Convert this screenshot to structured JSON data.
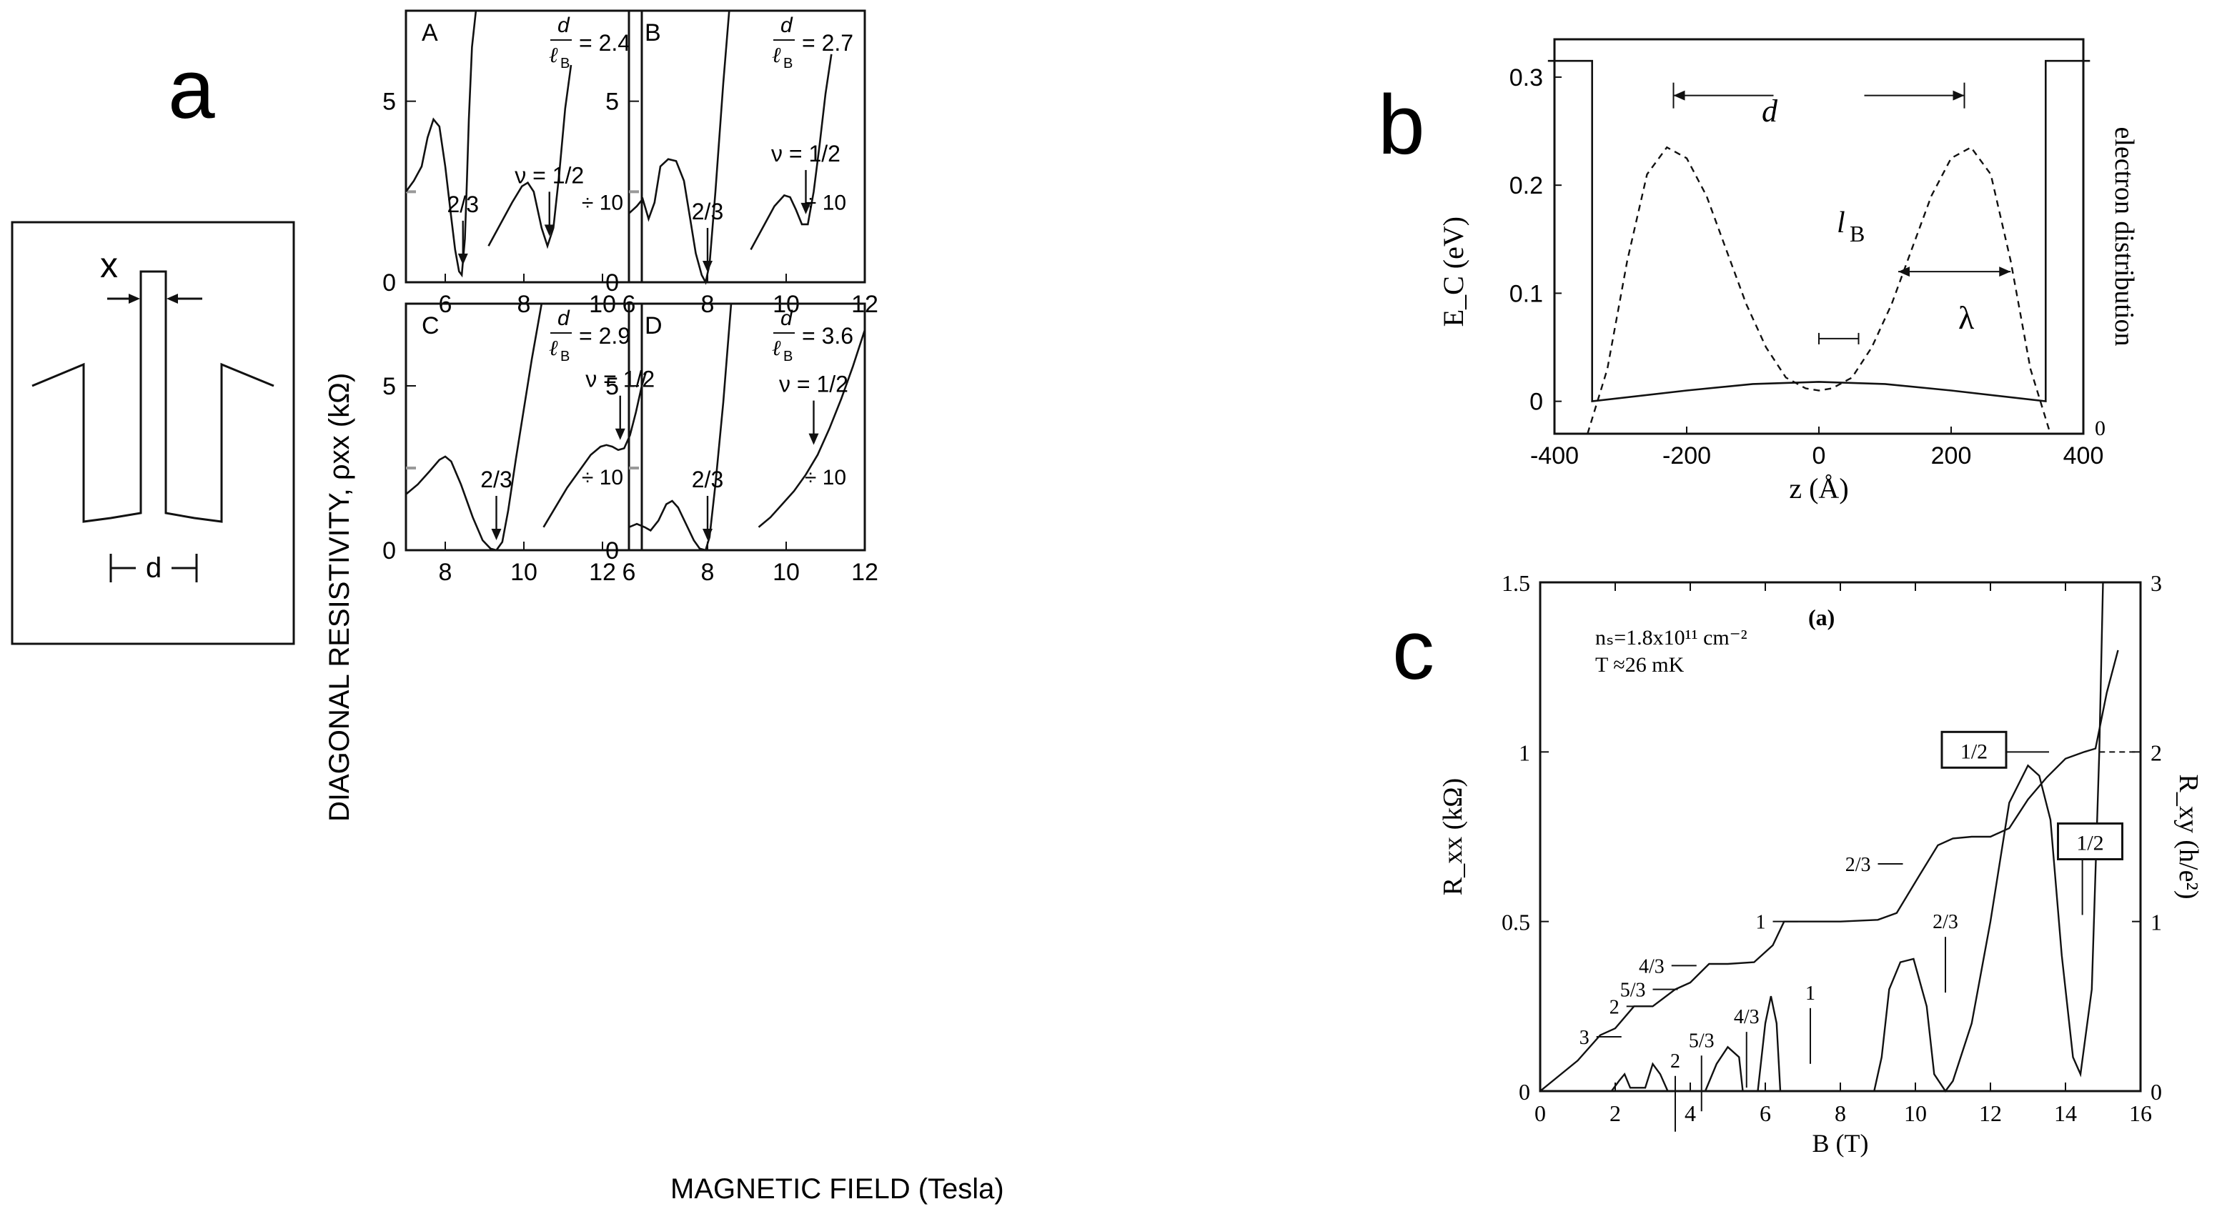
{
  "panel_a": {
    "letter": "a",
    "schematic": {
      "x_label": "x",
      "d_label": "d"
    },
    "ylabel": "DIAGONAL RESISTIVITY, ρxx (kΩ)",
    "xlabel": "MAGNETIC FIELD (Tesla)",
    "divide_label": "÷ 10"
  },
  "panel_b": {
    "letter": "b",
    "d_label": "d",
    "lb_label": "l_B",
    "lambda_label": "λ"
  },
  "panel_c": {
    "letter": "c",
    "sub_label": "(a)",
    "ns_text": "nₛ=1.8x10¹¹ cm⁻²",
    "t_text": "T ≈26 mK",
    "box1": "1/2",
    "box2": "1/2"
  },
  "chart_data": [
    {
      "type": "line",
      "id": "A",
      "label": "A",
      "ratio_text": "= 2.4",
      "xlim": [
        5,
        11
      ],
      "ylim": [
        0,
        7.5
      ],
      "xticks": [
        6,
        8,
        10
      ],
      "yticks": [
        0,
        5
      ],
      "arrows": [
        {
          "x": 6.45,
          "label": "2/3"
        },
        {
          "x": 8.65,
          "label": "ν = 1/2"
        }
      ],
      "divide_label": "÷ 10",
      "series": [
        {
          "name": "rho_xx",
          "x": [
            5,
            5.2,
            5.4,
            5.55,
            5.7,
            5.85,
            6.0,
            6.15,
            6.25,
            6.35,
            6.42,
            6.5,
            6.55,
            6.6,
            6.68,
            6.78
          ],
          "values": [
            2.5,
            2.8,
            3.2,
            4.0,
            4.5,
            4.3,
            3.2,
            1.8,
            0.9,
            0.3,
            0.2,
            1.2,
            2.8,
            4.5,
            6.5,
            7.5
          ]
        },
        {
          "name": "rho_xx_div10",
          "x": [
            7.1,
            7.4,
            7.7,
            7.95,
            8.1,
            8.25,
            8.45,
            8.6,
            8.75,
            8.9,
            9.05,
            9.2
          ],
          "values": [
            1.0,
            1.6,
            2.2,
            2.65,
            2.75,
            2.5,
            1.5,
            1.0,
            1.5,
            3.0,
            4.8,
            6.0
          ]
        }
      ]
    },
    {
      "type": "line",
      "id": "B",
      "label": "B",
      "ratio_text": "= 2.7",
      "xlim": [
        6,
        12
      ],
      "ylim": [
        0,
        7.5
      ],
      "xticks": [
        6,
        8,
        10,
        12
      ],
      "yticks": [
        0,
        5
      ],
      "arrows": [
        {
          "x": 8.0,
          "label": "2/3"
        },
        {
          "x": 10.5,
          "label": "ν = 1/2"
        }
      ],
      "divide_label": "÷ 10",
      "series": [
        {
          "name": "rho_xx",
          "x": [
            6,
            6.2,
            6.35,
            6.5,
            6.65,
            6.8,
            7.0,
            7.2,
            7.4,
            7.55,
            7.7,
            7.85,
            7.95,
            8.05,
            8.2,
            8.4,
            8.55
          ],
          "values": [
            1.9,
            2.1,
            2.3,
            1.75,
            2.2,
            3.2,
            3.4,
            3.35,
            2.8,
            1.8,
            0.8,
            0.2,
            0.0,
            0.5,
            2.5,
            5.5,
            7.5
          ]
        },
        {
          "name": "rho_xx_div10",
          "x": [
            9.1,
            9.4,
            9.7,
            9.95,
            10.1,
            10.25,
            10.4,
            10.55,
            10.7,
            10.85,
            11.0,
            11.15
          ],
          "values": [
            0.9,
            1.5,
            2.1,
            2.4,
            2.35,
            2.0,
            1.6,
            1.6,
            2.5,
            3.8,
            5.2,
            6.3
          ]
        }
      ]
    },
    {
      "type": "line",
      "id": "C",
      "label": "C",
      "ratio_text": "= 2.9",
      "xlim": [
        7,
        13
      ],
      "ylim": [
        0,
        7.5
      ],
      "xticks": [
        8,
        10,
        12
      ],
      "yticks": [
        0,
        5
      ],
      "arrows": [
        {
          "x": 9.3,
          "label": "2/3"
        },
        {
          "x": 12.45,
          "label": "ν = 1/2"
        }
      ],
      "divide_label": "÷ 10",
      "series": [
        {
          "name": "rho_xx",
          "x": [
            7,
            7.3,
            7.6,
            7.85,
            8.0,
            8.15,
            8.4,
            8.7,
            8.95,
            9.15,
            9.3,
            9.45,
            9.6,
            9.8,
            10.0,
            10.2,
            10.45
          ],
          "values": [
            1.7,
            2.0,
            2.4,
            2.75,
            2.85,
            2.7,
            2.0,
            1.0,
            0.3,
            0.05,
            0.0,
            0.25,
            1.2,
            2.8,
            4.3,
            5.8,
            7.5
          ]
        },
        {
          "name": "rho_xx_div10",
          "x": [
            10.5,
            10.8,
            11.1,
            11.4,
            11.7,
            11.95,
            12.1,
            12.25,
            12.4,
            12.55,
            12.7,
            12.85,
            13.0,
            13.1
          ],
          "values": [
            0.7,
            1.3,
            1.9,
            2.4,
            2.9,
            3.15,
            3.2,
            3.15,
            3.05,
            3.1,
            3.5,
            4.2,
            5.0,
            5.4
          ]
        }
      ]
    },
    {
      "type": "line",
      "id": "D",
      "label": "D",
      "ratio_text": "= 3.6",
      "xlim": [
        6,
        12
      ],
      "ylim": [
        0,
        7.5
      ],
      "xticks": [
        6,
        8,
        10,
        12
      ],
      "yticks": [
        0,
        5
      ],
      "arrows": [
        {
          "x": 8.0,
          "label": "2/3"
        },
        {
          "x": 10.7,
          "label": "ν = 1/2"
        }
      ],
      "divide_label": "÷ 10",
      "series": [
        {
          "name": "rho_xx",
          "x": [
            6,
            6.2,
            6.4,
            6.55,
            6.75,
            6.95,
            7.1,
            7.25,
            7.45,
            7.65,
            7.8,
            7.95,
            8.05,
            8.2,
            8.4,
            8.6
          ],
          "values": [
            0.7,
            0.8,
            0.7,
            0.6,
            0.9,
            1.4,
            1.5,
            1.3,
            0.8,
            0.3,
            0.05,
            0.0,
            0.4,
            2.0,
            4.5,
            7.5
          ]
        },
        {
          "name": "rho_xx_div10",
          "x": [
            9.3,
            9.6,
            9.9,
            10.2,
            10.5,
            10.8,
            11.1,
            11.4,
            11.7,
            12.0
          ],
          "values": [
            0.7,
            1.0,
            1.4,
            1.8,
            2.3,
            2.9,
            3.7,
            4.6,
            5.6,
            6.7
          ]
        }
      ]
    },
    {
      "type": "line",
      "id": "b",
      "xlabel": "z (Å)",
      "ylabel": "E_C (eV)",
      "y2label": "electron distribution",
      "xlim": [
        -400,
        400
      ],
      "ylim": [
        -0.03,
        0.335
      ],
      "xticks": [
        -400,
        -200,
        0,
        200,
        400
      ],
      "yticks": [
        0,
        0.1,
        0.2,
        0.3
      ],
      "y2ticks": [
        0
      ],
      "series": [
        {
          "name": "potential",
          "x": [
            -410,
            -343,
            -343,
            -200,
            -100,
            0,
            100,
            200,
            343,
            343,
            410
          ],
          "values": [
            0.315,
            0.315,
            0.0,
            0.01,
            0.016,
            0.018,
            0.016,
            0.01,
            0.0,
            0.315,
            0.315
          ]
        },
        {
          "name": "electron_distribution",
          "x": [
            -350,
            -320,
            -290,
            -260,
            -230,
            -200,
            -170,
            -140,
            -110,
            -80,
            -50,
            -20,
            0,
            20,
            50,
            80,
            110,
            140,
            170,
            200,
            230,
            260,
            290,
            320,
            350
          ],
          "values": [
            -0.03,
            0.03,
            0.13,
            0.21,
            0.235,
            0.225,
            0.19,
            0.14,
            0.09,
            0.05,
            0.022,
            0.012,
            0.01,
            0.012,
            0.022,
            0.05,
            0.09,
            0.14,
            0.19,
            0.225,
            0.235,
            0.21,
            0.13,
            0.03,
            -0.03
          ]
        }
      ]
    },
    {
      "type": "line",
      "id": "c",
      "xlabel": "B (T)",
      "ylabel": "R_xx (kΩ)",
      "y2label": "R_xy (h/e²)",
      "xlim": [
        0,
        16
      ],
      "ylim": [
        0,
        1.5
      ],
      "y2lim": [
        0,
        3
      ],
      "xticks": [
        0,
        2,
        4,
        6,
        8,
        10,
        12,
        14,
        16
      ],
      "yticks": [
        0,
        0.5,
        1,
        1.5
      ],
      "yticklabels": [
        "0",
        "0.5",
        "1",
        "1.5"
      ],
      "y2ticks": [
        0,
        1,
        2,
        3
      ],
      "plateau_labels": [
        {
          "x": 1.5,
          "y": 0.16,
          "label": "3"
        },
        {
          "x": 2.3,
          "y": 0.25,
          "label": "2"
        },
        {
          "x": 3.0,
          "y": 0.3,
          "label": "5/3"
        },
        {
          "x": 3.5,
          "y": 0.37,
          "label": "4/3"
        },
        {
          "x": 6.2,
          "y": 0.5,
          "label": "1"
        },
        {
          "x": 9.0,
          "y": 0.67,
          "label": "2/3"
        }
      ],
      "rxx_labels": [
        {
          "x": 3.6,
          "y": 0.07,
          "label": "2"
        },
        {
          "x": 4.3,
          "y": 0.13,
          "label": "5/3"
        },
        {
          "x": 5.5,
          "y": 0.2,
          "label": "4/3"
        },
        {
          "x": 7.2,
          "y": 0.27,
          "label": "1"
        },
        {
          "x": 10.8,
          "y": 0.48,
          "label": "2/3"
        }
      ],
      "series": [
        {
          "name": "R_xy",
          "x": [
            0,
            1,
            1.6,
            2.0,
            2.5,
            3.0,
            3.6,
            4.0,
            4.5,
            5.0,
            5.7,
            6.2,
            6.5,
            7,
            8,
            9,
            9.5,
            10.1,
            10.6,
            11,
            11.5,
            12,
            12.5,
            13,
            13.5,
            14,
            14.5,
            14.8,
            15.1,
            15.4
          ],
          "values": [
            0,
            0.18,
            0.33,
            0.37,
            0.5,
            0.5,
            0.6,
            0.64,
            0.75,
            0.75,
            0.76,
            0.86,
            1.0,
            1.0,
            1.0,
            1.01,
            1.05,
            1.27,
            1.45,
            1.49,
            1.5,
            1.5,
            1.55,
            1.72,
            1.85,
            1.96,
            2.0,
            2.02,
            2.35,
            2.6
          ]
        },
        {
          "name": "R_xx",
          "x": [
            0,
            1.9,
            2.1,
            2.25,
            2.4,
            2.8,
            3.0,
            3.2,
            3.4,
            4.4,
            4.7,
            5.0,
            5.3,
            5.4,
            5.8,
            6.0,
            6.15,
            6.3,
            6.4,
            8.9,
            9.1,
            9.3,
            9.6,
            9.95,
            10.3,
            10.5,
            10.8,
            11.0,
            11.5,
            12.0,
            12.5,
            13.0,
            13.3,
            13.6,
            13.9,
            14.2,
            14.4,
            14.7,
            14.9,
            15.0
          ],
          "values": [
            0,
            0,
            0.03,
            0.05,
            0.01,
            0.01,
            0.08,
            0.05,
            0.0,
            0.0,
            0.08,
            0.13,
            0.1,
            0.0,
            0.0,
            0.2,
            0.28,
            0.2,
            0.0,
            0.0,
            0.1,
            0.3,
            0.38,
            0.39,
            0.25,
            0.05,
            0.0,
            0.03,
            0.2,
            0.5,
            0.85,
            0.96,
            0.93,
            0.8,
            0.4,
            0.1,
            0.05,
            0.3,
            1.0,
            1.5
          ]
        }
      ]
    }
  ]
}
